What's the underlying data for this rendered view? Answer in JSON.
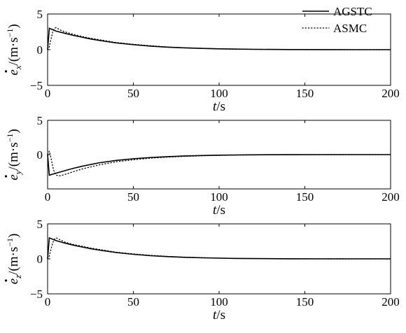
{
  "chart_data": [
    {
      "type": "line",
      "xlabel_var": "t",
      "xlabel_unit": "/s",
      "ylabel_var": "e",
      "ylabel_sub": "x",
      "ylabel_unit": "/(m·s",
      "ylabel_exp": "−1",
      "ylabel_close": ")",
      "xlim": [
        0,
        200
      ],
      "ylim": [
        -5,
        5
      ],
      "xticks": [
        "0",
        "50",
        "100",
        "150",
        "200"
      ],
      "yticks": [
        "5",
        "0",
        "−5"
      ],
      "legend": {
        "placement": "top-right",
        "entries": [
          {
            "label": "AGSTC",
            "style": "solid"
          },
          {
            "label": "ASMC",
            "style": "dotted"
          }
        ]
      },
      "series": [
        {
          "name": "AGSTC",
          "style": "solid",
          "x": [
            0,
            1,
            5,
            10,
            15,
            20,
            25,
            30,
            40,
            50,
            60,
            70,
            80,
            90,
            100,
            110,
            120,
            140,
            160,
            180,
            200
          ],
          "y": [
            0,
            3.0,
            2.6,
            2.3,
            2.0,
            1.75,
            1.5,
            1.3,
            0.95,
            0.7,
            0.5,
            0.35,
            0.25,
            0.18,
            0.12,
            0.08,
            0.05,
            0.02,
            0.01,
            0.0,
            0.0
          ]
        },
        {
          "name": "ASMC",
          "style": "dotted",
          "x": [
            0,
            1,
            2,
            3,
            4,
            5,
            7,
            10,
            15,
            20,
            25,
            30,
            40,
            50,
            60,
            70,
            80,
            90,
            100,
            110,
            120,
            140,
            160,
            180,
            200
          ],
          "y": [
            0,
            0.4,
            1.5,
            2.5,
            3.0,
            3.1,
            2.8,
            2.5,
            2.15,
            1.85,
            1.6,
            1.4,
            1.0,
            0.75,
            0.55,
            0.38,
            0.27,
            0.19,
            0.13,
            0.09,
            0.05,
            0.02,
            0.01,
            0.0,
            0.0
          ]
        }
      ]
    },
    {
      "type": "line",
      "xlabel_var": "t",
      "xlabel_unit": "/s",
      "ylabel_var": "e",
      "ylabel_sub": "y",
      "ylabel_unit": "/(m·s",
      "ylabel_exp": "−1",
      "ylabel_close": ")",
      "xlim": [
        0,
        200
      ],
      "ylim": [
        -5,
        5
      ],
      "xticks": [
        "0",
        "50",
        "100",
        "150",
        "200"
      ],
      "yticks": [
        "5",
        "0"
      ],
      "series": [
        {
          "name": "AGSTC",
          "style": "solid",
          "x": [
            0,
            1,
            5,
            10,
            15,
            20,
            25,
            30,
            40,
            50,
            60,
            70,
            80,
            90,
            100,
            110,
            120,
            140,
            160,
            180,
            200
          ],
          "y": [
            0,
            -3.0,
            -2.7,
            -2.35,
            -2.0,
            -1.7,
            -1.45,
            -1.2,
            -0.85,
            -0.6,
            -0.42,
            -0.3,
            -0.2,
            -0.13,
            -0.08,
            -0.05,
            -0.03,
            -0.01,
            0.0,
            0.0,
            0.0
          ]
        },
        {
          "name": "ASMC",
          "style": "dotted",
          "x": [
            0,
            1,
            2,
            3,
            4,
            5,
            7,
            10,
            15,
            20,
            25,
            30,
            40,
            50,
            60,
            70,
            80,
            90,
            100,
            110,
            120,
            140,
            160,
            180,
            200
          ],
          "y": [
            0,
            0.5,
            -0.5,
            -1.8,
            -2.6,
            -3.0,
            -3.1,
            -2.9,
            -2.5,
            -2.1,
            -1.8,
            -1.5,
            -1.05,
            -0.75,
            -0.52,
            -0.36,
            -0.25,
            -0.17,
            -0.11,
            -0.07,
            -0.04,
            -0.02,
            -0.01,
            0.0,
            0.0
          ]
        }
      ]
    },
    {
      "type": "line",
      "xlabel_var": "t",
      "xlabel_unit": "/s",
      "ylabel_var": "e",
      "ylabel_sub": "z",
      "ylabel_unit": "/(m·s",
      "ylabel_exp": "−1",
      "ylabel_close": ")",
      "xlim": [
        0,
        200
      ],
      "ylim": [
        -5,
        5
      ],
      "xticks": [
        "0",
        "50",
        "100",
        "150",
        "200"
      ],
      "yticks": [
        "5",
        "0",
        "−5"
      ],
      "series": [
        {
          "name": "AGSTC",
          "style": "solid",
          "x": [
            0,
            1,
            5,
            10,
            15,
            20,
            25,
            30,
            40,
            50,
            60,
            70,
            80,
            90,
            100,
            110,
            120,
            140,
            160,
            180,
            200
          ],
          "y": [
            0,
            3.0,
            2.6,
            2.25,
            1.95,
            1.7,
            1.45,
            1.25,
            0.9,
            0.65,
            0.45,
            0.32,
            0.22,
            0.15,
            0.1,
            0.06,
            0.04,
            0.01,
            0.0,
            0.0,
            0.0
          ]
        },
        {
          "name": "ASMC",
          "style": "dotted",
          "x": [
            0,
            1,
            2,
            3,
            4,
            5,
            7,
            10,
            15,
            20,
            25,
            30,
            40,
            50,
            60,
            70,
            80,
            90,
            100,
            110,
            120,
            140,
            160,
            180,
            200
          ],
          "y": [
            0,
            0.4,
            1.4,
            2.3,
            2.8,
            3.0,
            2.75,
            2.4,
            2.05,
            1.8,
            1.55,
            1.35,
            0.95,
            0.7,
            0.5,
            0.35,
            0.24,
            0.17,
            0.11,
            0.07,
            0.04,
            0.02,
            0.01,
            0.0,
            0.0
          ]
        }
      ]
    }
  ]
}
